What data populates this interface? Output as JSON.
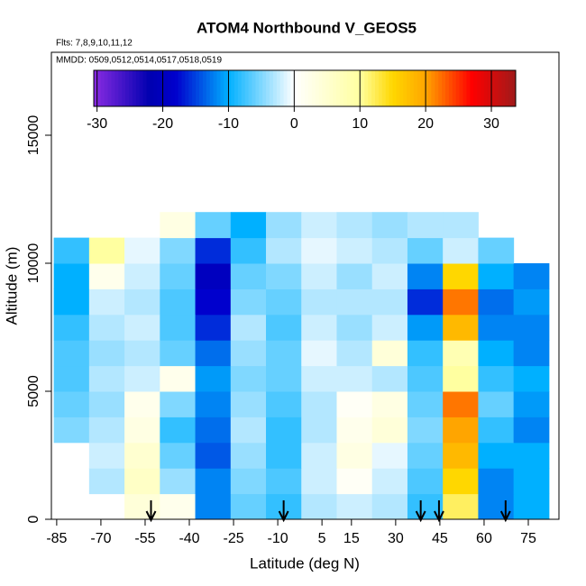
{
  "chart_data": {
    "type": "heatmap",
    "title": "ATOM4 Northbound V_GEOS5",
    "subtitle": "Flts: 7,8,9,10,11,12",
    "annotation": "MMDD: 0509,0512,0514,0517,0518,0519",
    "xlabel": "Latitude (deg N)",
    "ylabel": "Altitude (m)",
    "xlim": [
      -86.8,
      85.4
    ],
    "ylim": [
      0,
      18240
    ],
    "xticks": [
      -85,
      -70,
      -55,
      -40,
      -25,
      -10,
      5,
      15,
      30,
      45,
      60,
      75
    ],
    "yticks": [
      0,
      5000,
      10000,
      15000
    ],
    "x_bins": [
      -86,
      -74,
      -62,
      -50,
      -38,
      -26,
      -14,
      -2,
      10,
      22,
      34,
      46,
      58,
      70,
      82
    ],
    "y_bins": [
      0,
      1000,
      2000,
      3000,
      4000,
      5000,
      6000,
      7000,
      8000,
      9000,
      10000,
      11000,
      12000
    ],
    "values": [
      [
        null,
        null,
        4,
        2,
        -12,
        -6,
        -8,
        -3,
        -2,
        -3,
        -8,
        12,
        -12,
        -10
      ],
      [
        null,
        -3,
        6,
        -4,
        -12,
        -5,
        -7,
        -2,
        1,
        -2,
        -7,
        15,
        -12,
        -10
      ],
      [
        null,
        -2,
        5,
        -6,
        -14,
        -4,
        -8,
        -2,
        3,
        -1,
        -6,
        18,
        -10,
        -10
      ],
      [
        -5,
        -3,
        3,
        -8,
        -13,
        -3,
        -8,
        -3,
        2,
        4,
        -5,
        20,
        -8,
        -12
      ],
      [
        -6,
        -4,
        2,
        -5,
        -12,
        -4,
        -7,
        -3,
        1,
        3,
        -6,
        22,
        -6,
        -11
      ],
      [
        -7,
        -3,
        -2,
        2,
        -11,
        -5,
        -6,
        -2,
        -2,
        -3,
        -7,
        10,
        -8,
        -10
      ],
      [
        -7,
        -4,
        -3,
        -6,
        -13,
        -4,
        -6,
        -1,
        -3,
        4,
        -8,
        8,
        -10,
        -12
      ],
      [
        -8,
        -3,
        -2,
        -7,
        -16,
        -3,
        -7,
        -2,
        -4,
        -2,
        -11,
        18,
        -12,
        -12
      ],
      [
        -10,
        -2,
        -3,
        -7,
        -18,
        -5,
        -6,
        -3,
        -3,
        -3,
        -16,
        22,
        -13,
        -11
      ],
      [
        -10,
        2,
        -2,
        -6,
        -20,
        -6,
        -5,
        -2,
        -4,
        -2,
        -12,
        15,
        -10,
        -12
      ],
      [
        -8,
        10,
        -1,
        -5,
        -16,
        -8,
        -3,
        -1,
        -2,
        -3,
        -6,
        -2,
        -6,
        null
      ],
      [
        null,
        null,
        null,
        3,
        -6,
        -10,
        -4,
        -2,
        -3,
        -4,
        -3,
        -3,
        null,
        null
      ]
    ],
    "clim": [
      -30.5,
      33.7
    ],
    "cticks": [
      -30,
      -20,
      -10,
      0,
      10,
      20,
      30
    ],
    "colorscale": [
      {
        "value": -30.5,
        "color": "#8a2be2"
      },
      {
        "value": -22,
        "color": "#0000b0"
      },
      {
        "value": -18,
        "color": "#0000cd"
      },
      {
        "value": -10,
        "color": "#00b0ff"
      },
      {
        "value": 0,
        "color": "#ffffff"
      },
      {
        "value": 10,
        "color": "#ffffa0"
      },
      {
        "value": 15,
        "color": "#ffd700"
      },
      {
        "value": 20,
        "color": "#ffa500"
      },
      {
        "value": 27,
        "color": "#ff0000"
      },
      {
        "value": 33.7,
        "color": "#a01a1a"
      }
    ],
    "arrows": [
      -53,
      -8,
      38.5,
      44.7,
      67.3
    ]
  }
}
